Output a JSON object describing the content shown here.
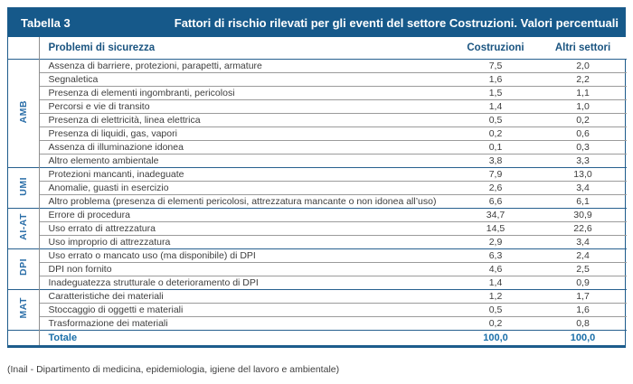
{
  "table": {
    "label": "Tabella 3",
    "title": "Fattori di rischio rilevati per gli eventi del settore Costruzioni. Valori percentuali",
    "columns": {
      "problem": "Problemi di sicurezza",
      "col1": "Costruzioni",
      "col2": "Altri settori"
    },
    "groups": [
      {
        "code": "AMB",
        "rows": [
          {
            "label": "Assenza di barriere, protezioni, parapetti, armature",
            "costruzioni": "7,5",
            "altri": "2,0"
          },
          {
            "label": "Segnaletica",
            "costruzioni": "1,6",
            "altri": "2,2"
          },
          {
            "label": "Presenza di elementi ingombranti, pericolosi",
            "costruzioni": "1,5",
            "altri": "1,1"
          },
          {
            "label": "Percorsi e vie di transito",
            "costruzioni": "1,4",
            "altri": "1,0"
          },
          {
            "label": "Presenza di elettricità, linea elettrica",
            "costruzioni": "0,5",
            "altri": "0,2"
          },
          {
            "label": "Presenza di liquidi, gas, vapori",
            "costruzioni": "0,2",
            "altri": "0,6"
          },
          {
            "label": "Assenza di illuminazione idonea",
            "costruzioni": "0,1",
            "altri": "0,3"
          },
          {
            "label": "Altro elemento ambientale",
            "costruzioni": "3,8",
            "altri": "3,3"
          }
        ]
      },
      {
        "code": "UMI",
        "rows": [
          {
            "label": "Protezioni mancanti, inadeguate",
            "costruzioni": "7,9",
            "altri": "13,0"
          },
          {
            "label": "Anomalie, guasti in esercizio",
            "costruzioni": "2,6",
            "altri": "3,4"
          },
          {
            "label": "Altro problema (presenza di elementi pericolosi, attrezzatura mancante o non idonea all’uso)",
            "costruzioni": "6,6",
            "altri": "6,1"
          }
        ]
      },
      {
        "code": "AI-AT",
        "rows": [
          {
            "label": "Errore di procedura",
            "costruzioni": "34,7",
            "altri": "30,9"
          },
          {
            "label": "Uso errato di attrezzatura",
            "costruzioni": "14,5",
            "altri": "22,6"
          },
          {
            "label": "Uso improprio di attrezzatura",
            "costruzioni": "2,9",
            "altri": "3,4"
          }
        ]
      },
      {
        "code": "DPI",
        "rows": [
          {
            "label": "Uso errato o mancato uso (ma disponibile) di DPI",
            "costruzioni": "6,3",
            "altri": "2,4"
          },
          {
            "label": "DPI non fornito",
            "costruzioni": "4,6",
            "altri": "2,5"
          },
          {
            "label": "Inadeguatezza strutturale o deterioramento di DPI",
            "costruzioni": "1,4",
            "altri": "0,9"
          }
        ]
      },
      {
        "code": "MAT",
        "rows": [
          {
            "label": "Caratteristiche dei materiali",
            "costruzioni": "1,2",
            "altri": "1,7"
          },
          {
            "label": "Stoccaggio di oggetti e materiali",
            "costruzioni": "0,5",
            "altri": "1,6"
          },
          {
            "label": "Trasformazione dei materiali",
            "costruzioni": "0,2",
            "altri": "0,8"
          }
        ]
      }
    ],
    "total": {
      "label": "Totale",
      "costruzioni": "100,0",
      "altri": "100,0"
    }
  },
  "footer": {
    "note": "(Inail - Dipartimento di medicina, epidemiologia, igiene del lavoro e ambientale)"
  },
  "colors": {
    "header_bar": "#16598a",
    "header_text": "#ffffff",
    "column_header_text": "#1a5480",
    "group_label_text": "#2a6ea8",
    "total_text": "#1a6fa9",
    "body_text": "#3d3d3d",
    "group_border": "#27608f",
    "row_border": "#9b9b9b"
  }
}
